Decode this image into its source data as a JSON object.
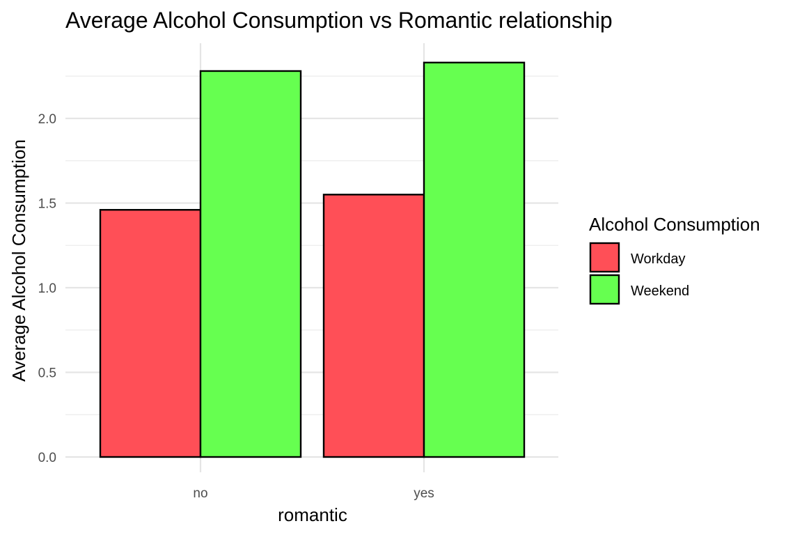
{
  "chart_data": {
    "type": "bar",
    "title": "Average Alcohol Consumption vs Romantic relationship",
    "xlabel": "romantic",
    "ylabel": "Average Alcohol Consumption",
    "categories": [
      "no",
      "yes"
    ],
    "series": [
      {
        "name": "Workday",
        "values": [
          1.46,
          1.55
        ],
        "color": "#FF4F57"
      },
      {
        "name": "Weekend",
        "values": [
          2.28,
          2.33
        ],
        "color": "#66FF50"
      }
    ],
    "ylim": [
      0,
      2.33
    ],
    "yticks": [
      0.0,
      0.5,
      1.0,
      1.5,
      2.0
    ],
    "ytick_labels": [
      "0.0",
      "0.5",
      "1.0",
      "1.5",
      "2.0"
    ],
    "grid": true,
    "legend": {
      "title": "Alcohol Consumption",
      "position": "right",
      "entries": [
        "Workday",
        "Weekend"
      ]
    }
  }
}
